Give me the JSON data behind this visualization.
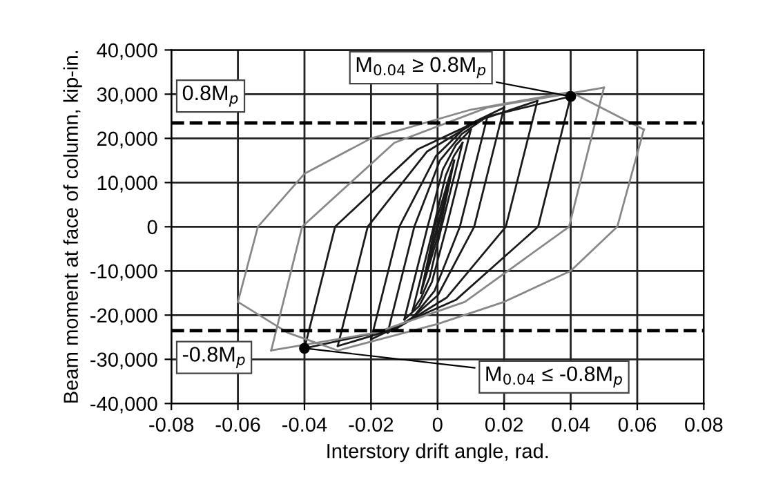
{
  "chart_data": {
    "type": "line",
    "xlabel": "Interstory drift angle, rad.",
    "ylabel": "Beam moment at face of column, kip-in.",
    "xlim": [
      -0.08,
      0.08
    ],
    "xticks": [
      {
        "value": -0.08,
        "label": "-0.08"
      },
      {
        "value": -0.06,
        "label": "-0.06"
      },
      {
        "value": -0.04,
        "label": "-0.04"
      },
      {
        "value": -0.02,
        "label": "-0.02"
      },
      0,
      0.02,
      0.04,
      0.06,
      0.08
    ],
    "ylim": [
      -40000,
      40000
    ],
    "yticks": [
      {
        "value": -40000,
        "label": "-40,000"
      },
      {
        "value": -30000,
        "label": "-30,000"
      },
      {
        "value": -20000,
        "label": "-20,000"
      },
      {
        "value": -10000,
        "label": "-10,000"
      },
      {
        "value": 0,
        "label": "0"
      },
      {
        "value": 10000,
        "label": "10,000"
      },
      {
        "value": 20000,
        "label": "20,000"
      },
      {
        "value": 30000,
        "label": "30,000"
      },
      {
        "value": 40000,
        "label": "40,000"
      }
    ],
    "grid": true,
    "line_style": "solid",
    "series": [
      {
        "color": "#1a1a1a",
        "x": [
          -0.00375,
          0.0,
          0.00375
        ],
        "values": [
          -11000,
          -500,
          11000
        ]
      },
      {
        "color": "#1a1a1a",
        "x": [
          -0.00375,
          0.0,
          0.00375
        ],
        "values": [
          -11000,
          500,
          11000
        ]
      },
      {
        "color": "#1a1a1a",
        "x": [
          -0.005,
          0.0005,
          0.005
        ],
        "values": [
          -15000,
          -1000,
          15000
        ]
      },
      {
        "color": "#1a1a1a",
        "x": [
          -0.005,
          -0.0005,
          0.005
        ],
        "values": [
          -15000,
          1000,
          15000
        ]
      },
      {
        "color": "#1a1a1a",
        "x": [
          -0.0075,
          -0.0012,
          0.0024,
          0.0049,
          0.0075
        ],
        "values": [
          -19000,
          0,
          11500,
          16000,
          19000
        ]
      },
      {
        "color": "#1a1a1a",
        "x": [
          -0.0075,
          -0.0049,
          -0.0024,
          0.0012,
          0.0075
        ],
        "values": [
          -19000,
          -16000,
          -11500,
          0,
          19000
        ]
      },
      {
        "color": "#1a1a1a",
        "x": [
          -0.01,
          -0.003,
          0.0016,
          0.0055,
          0.01
        ],
        "values": [
          -21000,
          0,
          13000,
          18500,
          22000
        ]
      },
      {
        "color": "#1a1a1a",
        "x": [
          -0.01,
          -0.0056,
          -0.0017,
          0.0027,
          0.01
        ],
        "values": [
          -21000,
          -18000,
          -12500,
          0,
          22000
        ]
      },
      {
        "color": "#1a1a1a",
        "x": [
          -0.015,
          -0.007,
          0.0007,
          0.0073,
          0.015
        ],
        "values": [
          -24000,
          0,
          15000,
          21000,
          25000
        ]
      },
      {
        "color": "#1a1a1a",
        "x": [
          -0.015,
          -0.0074,
          -0.0009,
          0.0067,
          0.015
        ],
        "values": [
          -24000,
          -20500,
          -14500,
          0,
          25000
        ]
      },
      {
        "color": "#1a1a1a",
        "x": [
          -0.02,
          -0.0115,
          -0.0005,
          0.009,
          0.02
        ],
        "values": [
          -25500,
          0,
          16000,
          23000,
          27000
        ]
      },
      {
        "color": "#1a1a1a",
        "x": [
          -0.02,
          -0.009,
          0.0001,
          0.011,
          0.02
        ],
        "values": [
          -25500,
          -21500,
          -15500,
          0,
          27000
        ]
      },
      {
        "color": "#1a1a1a",
        "x": [
          -0.03,
          -0.021,
          -0.0032,
          0.0122,
          0.03
        ],
        "values": [
          -27000,
          0,
          17000,
          24000,
          28500
        ]
      },
      {
        "color": "#1a1a1a",
        "x": [
          -0.03,
          -0.0123,
          0.0028,
          0.0205,
          0.03
        ],
        "values": [
          -27000,
          -23000,
          -16000,
          0,
          28500
        ]
      },
      {
        "color": "#1a1a1a",
        "x": [
          -0.04,
          -0.0308,
          -0.006,
          0.0152,
          0.04
        ],
        "values": [
          -27500,
          0,
          17500,
          25000,
          29500
        ]
      },
      {
        "color": "#1a1a1a",
        "x": [
          -0.04,
          -0.0154,
          0.0056,
          0.0302,
          0.04
        ],
        "values": [
          -27500,
          -23500,
          -16500,
          0,
          29500
        ]
      },
      {
        "color": "#888888",
        "x": [
          -0.05,
          -0.0407,
          -0.013,
          0.015,
          0.05
        ],
        "values": [
          -28000,
          0,
          19000,
          27000,
          31500
        ]
      },
      {
        "color": "#888888",
        "x": [
          -0.05,
          -0.0187,
          0.0082,
          0.0395,
          0.05
        ],
        "values": [
          -28000,
          -24000,
          -17000,
          0,
          31500
        ]
      },
      {
        "color": "#888888",
        "x": [
          -0.06,
          -0.054,
          -0.04,
          -0.02,
          0.01,
          0.04,
          0.062
        ],
        "values": [
          -17000,
          0,
          12000,
          20000,
          26500,
          30500,
          22000
        ]
      },
      {
        "color": "#888888",
        "x": [
          -0.06,
          -0.045,
          -0.03,
          0.0,
          0.02,
          0.04,
          0.054,
          0.062
        ],
        "values": [
          -17000,
          -24000,
          -28000,
          -22000,
          -17000,
          -10000,
          0,
          22000
        ]
      },
      {
        "type": "scatter",
        "marker": "circle",
        "color": "#000000",
        "x": [
          0.04,
          -0.04
        ],
        "values": [
          29500,
          -27500
        ]
      }
    ],
    "ref_lines": [
      {
        "axis": "y",
        "value": 23500,
        "label": "0.8M$_{p}$",
        "color": "#000000",
        "line_style": "dashed"
      },
      {
        "axis": "y",
        "value": -23500,
        "label": "-0.8M$_{p}$",
        "color": "#000000",
        "line_style": "dashed"
      }
    ],
    "annotations": [
      {
        "text": "M$_{0.04}$ ≥ 0.8M$_{p}$",
        "x": 0.04,
        "y": 29500
      },
      {
        "text": "M$_{0.04}$ ≤ -0.8M$_{p}$",
        "x": -0.04,
        "y": -27500
      }
    ]
  }
}
